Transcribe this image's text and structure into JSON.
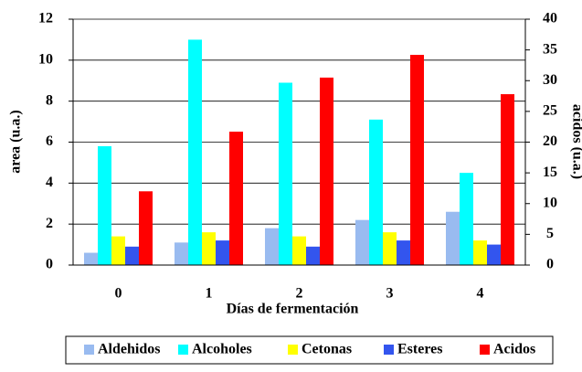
{
  "chart_data": {
    "type": "bar",
    "xlabel": "Días de fermentación",
    "ylabel": "area (u.a.)",
    "y2label": "acidos (u.a.)",
    "categories": [
      "0",
      "1",
      "2",
      "3",
      "4"
    ],
    "series": [
      {
        "name": "Aldehidos",
        "color": "#99bbf0",
        "values": [
          0.6,
          1.1,
          1.8,
          2.2,
          2.6
        ]
      },
      {
        "name": "Alcoholes",
        "color": "#00ffff",
        "values": [
          5.8,
          11.0,
          8.9,
          7.1,
          4.5
        ]
      },
      {
        "name": "Cetonas",
        "color": "#ffff00",
        "values": [
          1.4,
          1.6,
          1.4,
          1.6,
          1.2
        ]
      },
      {
        "name": "Esteres",
        "color": "#3355ee",
        "values": [
          0.9,
          1.2,
          0.9,
          1.2,
          1.0
        ]
      },
      {
        "name": "Acidos",
        "color": "#ff0000",
        "axis": "y2",
        "values": [
          12,
          21.7,
          30.5,
          34.2,
          27.8
        ]
      }
    ],
    "ylim": [
      0,
      12
    ],
    "yticks": [
      0,
      2,
      4,
      6,
      8,
      10,
      12
    ],
    "y2lim": [
      0,
      40
    ],
    "y2ticks": [
      0,
      5,
      10,
      15,
      20,
      25,
      30,
      35,
      40
    ],
    "grid": true,
    "legend": "bottom"
  }
}
